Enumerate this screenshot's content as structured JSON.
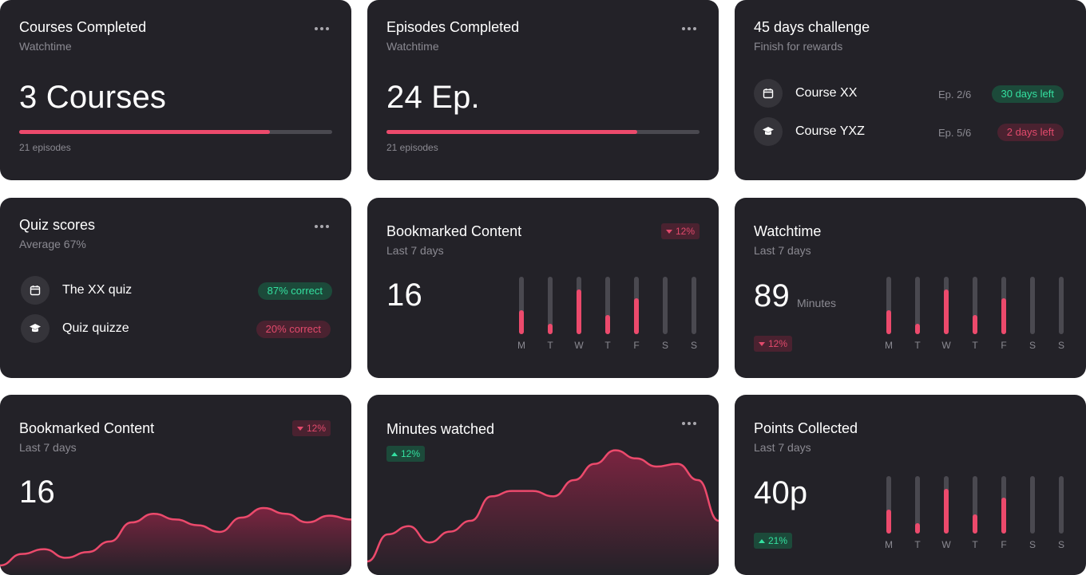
{
  "courses": {
    "title": "Courses Completed",
    "subtitle": "Watchtime",
    "value": "3 Courses",
    "progress": 0.8,
    "footnote": "21 episodes"
  },
  "episodes": {
    "title": "Episodes Completed",
    "subtitle": "Watchtime",
    "value": "24 Ep.",
    "progress": 0.8,
    "footnote": "21 episodes"
  },
  "challenge": {
    "title": "45 days challenge",
    "subtitle": "Finish for rewards",
    "items": [
      {
        "label": "Course XX",
        "episode": "Ep. 2/6",
        "status": "30 days left",
        "icon": "calendar-icon"
      },
      {
        "label": "Course YXZ",
        "episode": "Ep. 5/6",
        "status": "2 days left",
        "icon": "graduation-cap-icon"
      }
    ]
  },
  "quiz": {
    "title": "Quiz scores",
    "subtitle": "Average 67%",
    "items": [
      {
        "label": "The XX quiz",
        "status": "87% correct",
        "icon": "calendar-icon"
      },
      {
        "label": "Quiz quizze",
        "status": "20% correct",
        "icon": "graduation-cap-icon"
      }
    ]
  },
  "bookmarked_bars": {
    "title": "Bookmarked Content",
    "subtitle": "Last 7 days",
    "value": "16",
    "badge": "12%"
  },
  "watchtime": {
    "title": "Watchtime",
    "subtitle": "Last 7 days",
    "value": "89",
    "unit": "Minutes",
    "badge": "12%"
  },
  "bookmarked_area": {
    "title": "Bookmarked Content",
    "subtitle": "Last 7 days",
    "value": "16",
    "badge": "12%"
  },
  "minutes": {
    "title": "Minutes watched",
    "badge": "12%"
  },
  "points": {
    "title": "Points Collected",
    "subtitle": "Last 7 days",
    "value": "40p",
    "badge": "21%"
  },
  "chart_data": [
    {
      "type": "bar",
      "name": "bookmarked-weekly",
      "categories": [
        "M",
        "T",
        "W",
        "T",
        "F",
        "S",
        "S"
      ],
      "values": [
        0.42,
        0.18,
        0.78,
        0.34,
        0.62,
        0,
        0
      ],
      "ylim": [
        0,
        1
      ]
    },
    {
      "type": "bar",
      "name": "watchtime-weekly",
      "categories": [
        "M",
        "T",
        "W",
        "T",
        "F",
        "S",
        "S"
      ],
      "values": [
        0.42,
        0.18,
        0.78,
        0.34,
        0.62,
        0,
        0
      ],
      "ylim": [
        0,
        1
      ]
    },
    {
      "type": "bar",
      "name": "points-weekly",
      "categories": [
        "M",
        "T",
        "W",
        "T",
        "F",
        "S",
        "S"
      ],
      "values": [
        0.42,
        0.18,
        0.78,
        0.34,
        0.62,
        0,
        0
      ],
      "ylim": [
        0,
        1
      ]
    },
    {
      "type": "area",
      "name": "bookmarked-trend",
      "values": [
        10,
        22,
        27,
        18,
        24,
        35,
        55,
        64,
        58,
        52,
        45,
        60,
        70,
        64,
        55,
        62,
        58
      ],
      "ylim": [
        0,
        100
      ]
    },
    {
      "type": "area",
      "name": "minutes-trend",
      "values": [
        10,
        30,
        36,
        24,
        32,
        40,
        58,
        62,
        62,
        58,
        70,
        82,
        92,
        86,
        80,
        82,
        70,
        40
      ],
      "ylim": [
        0,
        100
      ]
    }
  ],
  "colors": {
    "accent": "#ec4a6c",
    "positive": "#34e0a0",
    "card": "#232228"
  }
}
